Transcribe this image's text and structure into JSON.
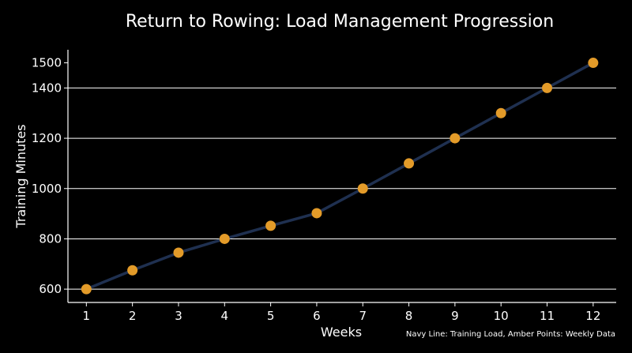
{
  "chart_data": {
    "type": "line",
    "title": "Return to Rowing: Load Management Progression",
    "xlabel": "Weeks",
    "ylabel": "Training Minutes",
    "x": [
      1,
      2,
      3,
      4,
      5,
      6,
      7,
      8,
      9,
      10,
      11,
      12
    ],
    "series": [
      {
        "values": [
          600,
          675,
          745,
          800,
          852,
          902,
          1000,
          1100,
          1200,
          1300,
          1400,
          1500
        ]
      }
    ],
    "xticks": [
      "1",
      "2",
      "3",
      "4",
      "5",
      "6",
      "7",
      "8",
      "9",
      "10",
      "11",
      "12"
    ],
    "yticks": [
      600,
      800,
      1000,
      1200,
      1400,
      1500
    ],
    "gridlines_y": [
      600,
      800,
      1000,
      1200,
      1400
    ],
    "xlim": [
      0.6,
      12.5
    ],
    "ylim": [
      547,
      1552
    ],
    "grid": "horizontal",
    "note": "Navy Line: Training Load, Amber Points: Weekly Data",
    "colors": {
      "line": "#1f3050",
      "points": "#e39b29",
      "grid": "#ffffff",
      "background": "#000000"
    }
  }
}
